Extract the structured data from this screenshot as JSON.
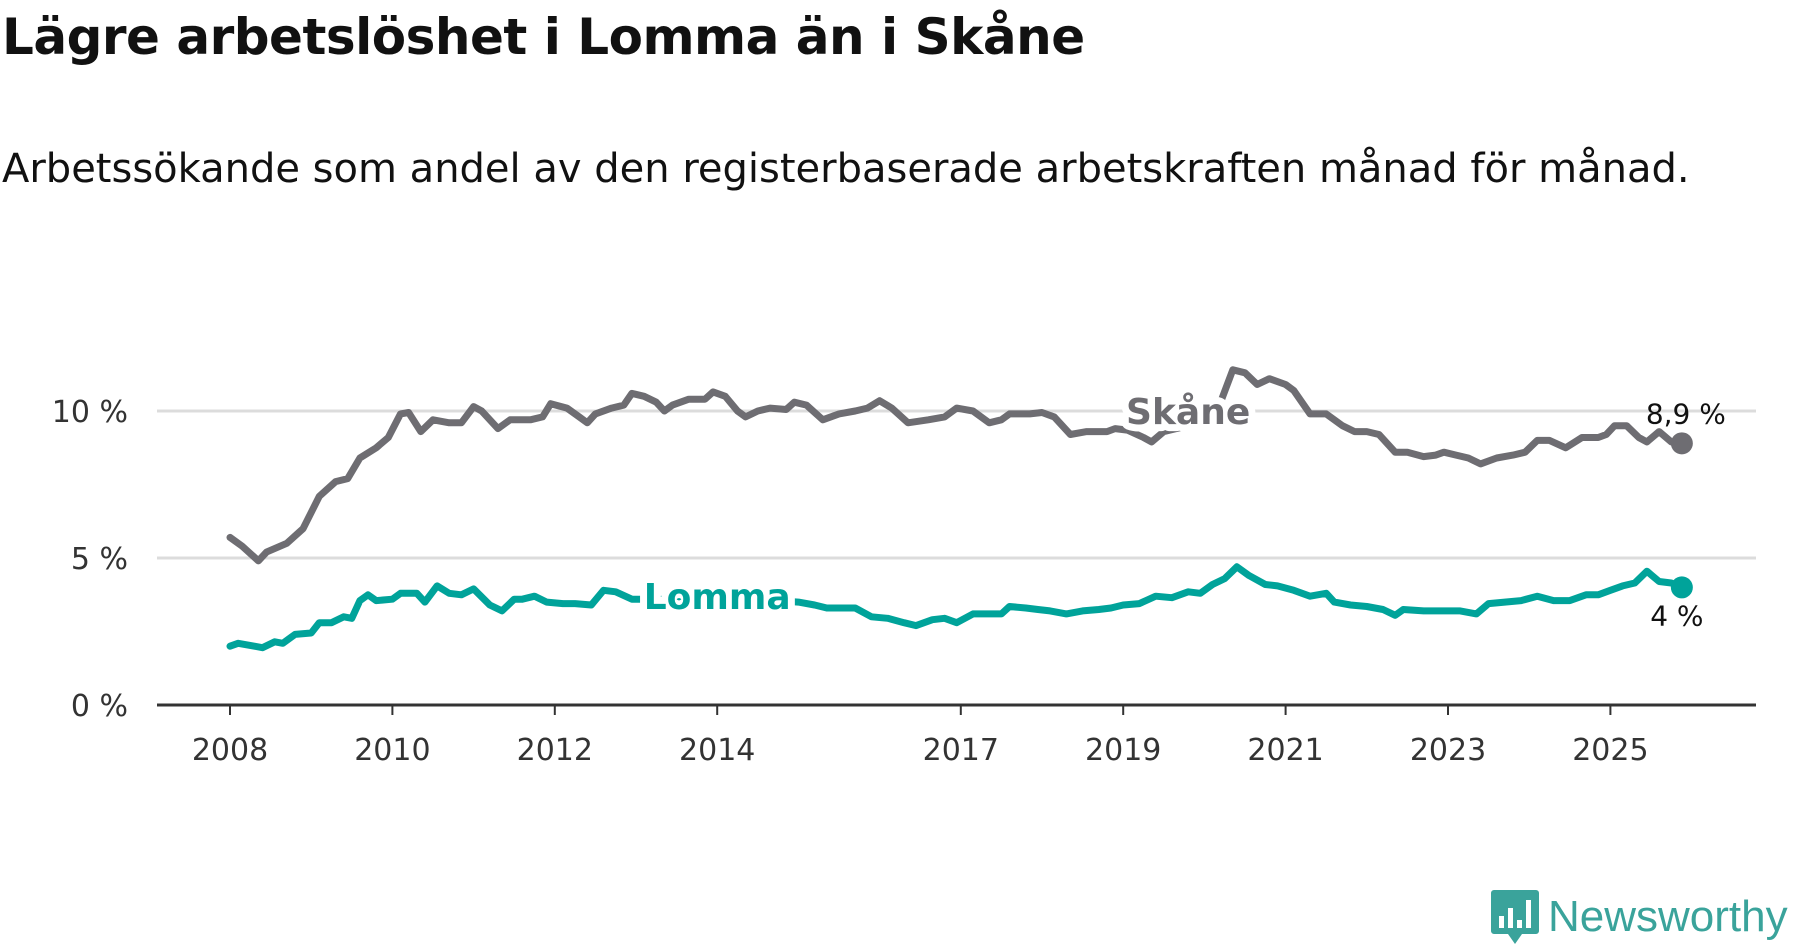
{
  "header": {
    "title": "Lägre arbetslöshet i Lomma än i Skåne",
    "subtitle": "Arbetssökande som andel av den registerbaserade arbetskraften månad för månad."
  },
  "logo": {
    "text": "Newsworthy",
    "color": "#3aa39b"
  },
  "chart_data": {
    "type": "line",
    "title": "Lägre arbetslöshet i Lomma än i Skåne",
    "xlabel": "",
    "ylabel": "",
    "ylim": [
      0,
      12
    ],
    "xlim": [
      2007.1,
      2027.4
    ],
    "grid": true,
    "y_ticks": [
      {
        "v": 0,
        "label": "0 %"
      },
      {
        "v": 5,
        "label": "5 %"
      },
      {
        "v": 10,
        "label": "10 %"
      }
    ],
    "x_ticks": [
      {
        "v": 2008,
        "label": "2008"
      },
      {
        "v": 2010,
        "label": "2010"
      },
      {
        "v": 2012,
        "label": "2012"
      },
      {
        "v": 2014,
        "label": "2014"
      },
      {
        "v": 2017,
        "label": "2017"
      },
      {
        "v": 2019,
        "label": "2019"
      },
      {
        "v": 2021,
        "label": "2021"
      },
      {
        "v": 2023,
        "label": "2023"
      },
      {
        "v": 2025,
        "label": "2025"
      }
    ],
    "series": [
      {
        "name": "Skåne",
        "color": "#6e6d72",
        "end_label": "8,9 %",
        "points": [
          [
            2008.0,
            5.7
          ],
          [
            2008.15,
            5.4
          ],
          [
            2008.35,
            4.9
          ],
          [
            2008.45,
            5.2
          ],
          [
            2008.7,
            5.5
          ],
          [
            2008.9,
            6.0
          ],
          [
            2009.1,
            7.1
          ],
          [
            2009.3,
            7.6
          ],
          [
            2009.45,
            7.7
          ],
          [
            2009.6,
            8.4
          ],
          [
            2009.8,
            8.75
          ],
          [
            2009.95,
            9.1
          ],
          [
            2010.1,
            9.9
          ],
          [
            2010.2,
            9.95
          ],
          [
            2010.35,
            9.3
          ],
          [
            2010.5,
            9.7
          ],
          [
            2010.7,
            9.6
          ],
          [
            2010.85,
            9.6
          ],
          [
            2011.0,
            10.15
          ],
          [
            2011.1,
            10.0
          ],
          [
            2011.3,
            9.4
          ],
          [
            2011.45,
            9.7
          ],
          [
            2011.7,
            9.7
          ],
          [
            2011.85,
            9.8
          ],
          [
            2011.95,
            10.25
          ],
          [
            2012.15,
            10.1
          ],
          [
            2012.3,
            9.8
          ],
          [
            2012.4,
            9.6
          ],
          [
            2012.5,
            9.9
          ],
          [
            2012.7,
            10.1
          ],
          [
            2012.85,
            10.2
          ],
          [
            2012.95,
            10.6
          ],
          [
            2013.1,
            10.5
          ],
          [
            2013.25,
            10.3
          ],
          [
            2013.35,
            10.0
          ],
          [
            2013.45,
            10.2
          ],
          [
            2013.65,
            10.4
          ],
          [
            2013.85,
            10.4
          ],
          [
            2013.95,
            10.65
          ],
          [
            2014.1,
            10.5
          ],
          [
            2014.25,
            10.0
          ],
          [
            2014.35,
            9.8
          ],
          [
            2014.5,
            10.0
          ],
          [
            2014.65,
            10.1
          ],
          [
            2014.85,
            10.05
          ],
          [
            2014.95,
            10.3
          ],
          [
            2015.1,
            10.2
          ],
          [
            2015.3,
            9.7
          ],
          [
            2015.5,
            9.9
          ],
          [
            2015.7,
            10.0
          ],
          [
            2015.85,
            10.1
          ],
          [
            2016.0,
            10.35
          ],
          [
            2016.15,
            10.1
          ],
          [
            2016.35,
            9.6
          ],
          [
            2016.6,
            9.7
          ],
          [
            2016.8,
            9.8
          ],
          [
            2016.95,
            10.1
          ],
          [
            2017.15,
            10.0
          ],
          [
            2017.35,
            9.6
          ],
          [
            2017.5,
            9.7
          ],
          [
            2017.6,
            9.9
          ],
          [
            2017.85,
            9.9
          ],
          [
            2018.0,
            9.95
          ],
          [
            2018.15,
            9.8
          ],
          [
            2018.35,
            9.2
          ],
          [
            2018.55,
            9.3
          ],
          [
            2018.8,
            9.3
          ],
          [
            2018.9,
            9.4
          ],
          [
            2019.05,
            9.35
          ],
          [
            2019.25,
            9.1
          ],
          [
            2019.35,
            8.95
          ],
          [
            2019.5,
            9.3
          ],
          [
            2019.8,
            9.5
          ],
          [
            2020.0,
            9.9
          ],
          [
            2020.2,
            10.3
          ],
          [
            2020.35,
            11.4
          ],
          [
            2020.5,
            11.3
          ],
          [
            2020.65,
            10.9
          ],
          [
            2020.8,
            11.1
          ],
          [
            2021.0,
            10.9
          ],
          [
            2021.1,
            10.7
          ],
          [
            2021.3,
            9.9
          ],
          [
            2021.5,
            9.9
          ],
          [
            2021.7,
            9.5
          ],
          [
            2021.85,
            9.3
          ],
          [
            2022.0,
            9.3
          ],
          [
            2022.15,
            9.2
          ],
          [
            2022.35,
            8.6
          ],
          [
            2022.5,
            8.6
          ],
          [
            2022.7,
            8.45
          ],
          [
            2022.85,
            8.5
          ],
          [
            2022.95,
            8.6
          ],
          [
            2023.1,
            8.5
          ],
          [
            2023.25,
            8.4
          ],
          [
            2023.4,
            8.2
          ],
          [
            2023.6,
            8.4
          ],
          [
            2023.8,
            8.5
          ],
          [
            2023.95,
            8.6
          ],
          [
            2024.1,
            9.0
          ],
          [
            2024.25,
            9.0
          ],
          [
            2024.45,
            8.75
          ],
          [
            2024.65,
            9.1
          ],
          [
            2024.85,
            9.1
          ],
          [
            2024.95,
            9.2
          ],
          [
            2025.05,
            9.5
          ],
          [
            2025.2,
            9.5
          ],
          [
            2025.35,
            9.1
          ],
          [
            2025.45,
            8.95
          ],
          [
            2025.6,
            9.3
          ],
          [
            2025.75,
            8.95
          ],
          [
            2025.88,
            8.9
          ]
        ]
      },
      {
        "name": "Lomma",
        "color": "#00a39a",
        "end_label": "4 %",
        "points": [
          [
            2008.0,
            2.0
          ],
          [
            2008.1,
            2.1
          ],
          [
            2008.3,
            2.0
          ],
          [
            2008.4,
            1.95
          ],
          [
            2008.55,
            2.15
          ],
          [
            2008.65,
            2.1
          ],
          [
            2008.8,
            2.4
          ],
          [
            2009.0,
            2.45
          ],
          [
            2009.1,
            2.8
          ],
          [
            2009.25,
            2.8
          ],
          [
            2009.4,
            3.0
          ],
          [
            2009.5,
            2.95
          ],
          [
            2009.6,
            3.55
          ],
          [
            2009.7,
            3.75
          ],
          [
            2009.8,
            3.55
          ],
          [
            2010.0,
            3.6
          ],
          [
            2010.1,
            3.8
          ],
          [
            2010.3,
            3.8
          ],
          [
            2010.4,
            3.5
          ],
          [
            2010.55,
            4.05
          ],
          [
            2010.7,
            3.8
          ],
          [
            2010.85,
            3.75
          ],
          [
            2011.0,
            3.95
          ],
          [
            2011.2,
            3.4
          ],
          [
            2011.35,
            3.2
          ],
          [
            2011.5,
            3.6
          ],
          [
            2011.6,
            3.6
          ],
          [
            2011.75,
            3.7
          ],
          [
            2011.9,
            3.5
          ],
          [
            2012.1,
            3.45
          ],
          [
            2012.25,
            3.45
          ],
          [
            2012.45,
            3.4
          ],
          [
            2012.6,
            3.9
          ],
          [
            2012.75,
            3.85
          ],
          [
            2012.95,
            3.6
          ],
          [
            2013.5,
            3.6
          ],
          [
            2014.0,
            3.65
          ],
          [
            2014.5,
            3.6
          ],
          [
            2015.0,
            3.5
          ],
          [
            2015.2,
            3.4
          ],
          [
            2015.35,
            3.3
          ],
          [
            2015.55,
            3.3
          ],
          [
            2015.7,
            3.3
          ],
          [
            2015.9,
            3.0
          ],
          [
            2016.1,
            2.95
          ],
          [
            2016.3,
            2.8
          ],
          [
            2016.45,
            2.7
          ],
          [
            2016.65,
            2.9
          ],
          [
            2016.8,
            2.95
          ],
          [
            2016.95,
            2.8
          ],
          [
            2017.15,
            3.1
          ],
          [
            2017.35,
            3.1
          ],
          [
            2017.5,
            3.1
          ],
          [
            2017.6,
            3.35
          ],
          [
            2017.8,
            3.3
          ],
          [
            2017.95,
            3.25
          ],
          [
            2018.1,
            3.2
          ],
          [
            2018.3,
            3.1
          ],
          [
            2018.5,
            3.2
          ],
          [
            2018.7,
            3.25
          ],
          [
            2018.85,
            3.3
          ],
          [
            2019.0,
            3.4
          ],
          [
            2019.2,
            3.45
          ],
          [
            2019.4,
            3.7
          ],
          [
            2019.6,
            3.65
          ],
          [
            2019.8,
            3.85
          ],
          [
            2019.95,
            3.8
          ],
          [
            2020.1,
            4.1
          ],
          [
            2020.25,
            4.3
          ],
          [
            2020.4,
            4.7
          ],
          [
            2020.55,
            4.4
          ],
          [
            2020.75,
            4.1
          ],
          [
            2020.9,
            4.05
          ],
          [
            2021.1,
            3.9
          ],
          [
            2021.3,
            3.7
          ],
          [
            2021.5,
            3.8
          ],
          [
            2021.6,
            3.5
          ],
          [
            2021.8,
            3.4
          ],
          [
            2022.0,
            3.35
          ],
          [
            2022.2,
            3.25
          ],
          [
            2022.35,
            3.05
          ],
          [
            2022.45,
            3.25
          ],
          [
            2022.7,
            3.2
          ],
          [
            2023.0,
            3.2
          ],
          [
            2023.15,
            3.2
          ],
          [
            2023.35,
            3.1
          ],
          [
            2023.5,
            3.45
          ],
          [
            2023.7,
            3.5
          ],
          [
            2023.9,
            3.55
          ],
          [
            2024.1,
            3.7
          ],
          [
            2024.3,
            3.55
          ],
          [
            2024.5,
            3.55
          ],
          [
            2024.7,
            3.75
          ],
          [
            2024.85,
            3.75
          ],
          [
            2025.0,
            3.9
          ],
          [
            2025.15,
            4.05
          ],
          [
            2025.3,
            4.15
          ],
          [
            2025.45,
            4.55
          ],
          [
            2025.6,
            4.2
          ],
          [
            2025.75,
            4.15
          ],
          [
            2025.88,
            4.0
          ]
        ]
      }
    ],
    "annotations": [
      {
        "series": "Skåne",
        "label": "Skåne",
        "at": [
          2019.8,
          10.0
        ]
      },
      {
        "series": "Lomma",
        "label": "Lomma",
        "at": [
          2014.0,
          3.7
        ]
      }
    ]
  }
}
